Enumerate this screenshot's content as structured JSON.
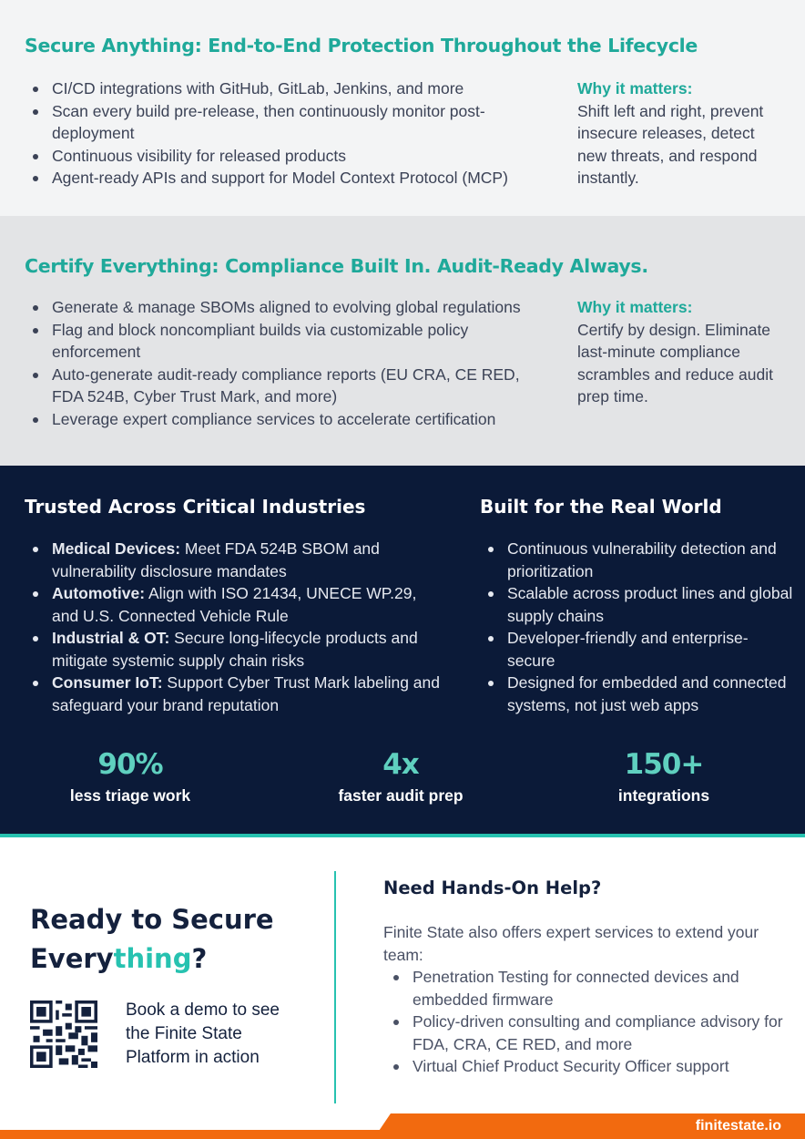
{
  "secure": {
    "title": "Secure Anything: End-to-End Protection Throughout the Lifecycle",
    "items": [
      "CI/CD integrations with GitHub, GitLab, Jenkins, and more",
      "Scan every build pre-release, then continuously monitor post-deployment",
      "Continuous visibility for released products",
      "Agent-ready APIs and support for Model Context Protocol (MCP)"
    ],
    "why_heading": "Why it matters:",
    "why_text": "Shift left and right, prevent insecure releases, detect new threats, and respond instantly."
  },
  "certify": {
    "title": "Certify Everything: Compliance Built In. Audit-Ready Always.",
    "items": [
      "Generate & manage SBOMs aligned to evolving global regulations",
      "Flag and block noncompliant builds via customizable policy enforcement",
      "Auto-generate audit-ready compliance reports (EU CRA, CE RED, FDA 524B, Cyber Trust Mark, and more)",
      "Leverage expert compliance services to accelerate certification"
    ],
    "why_heading": "Why it matters:",
    "why_text": "Certify by design. Eliminate last-minute compliance scrambles and reduce audit prep time."
  },
  "industries": {
    "title": "Trusted Across Critical Industries",
    "items": [
      {
        "label": "Medical Devices:",
        "text": " Meet FDA 524B SBOM and vulnerability disclosure mandates"
      },
      {
        "label": "Automotive:",
        "text": " Align with ISO 21434, UNECE WP.29, and U.S. Connected Vehicle Rule"
      },
      {
        "label": "Industrial & OT:",
        "text": " Secure long-lifecycle products and mitigate systemic supply chain risks"
      },
      {
        "label": "Consumer IoT:",
        "text": " Support Cyber Trust Mark labeling and safeguard your brand reputation"
      }
    ]
  },
  "real_world": {
    "title": "Built for the Real World",
    "items": [
      "Continuous vulnerability detection and prioritization",
      "Scalable across product lines and global supply chains",
      "Developer-friendly and enterprise-secure",
      "Designed for embedded and connected systems, not just web apps"
    ]
  },
  "stats": [
    {
      "value": "90%",
      "label": "less triage work"
    },
    {
      "value": "4x",
      "label": "faster audit prep"
    },
    {
      "value": "150+",
      "label": "integrations"
    }
  ],
  "cta": {
    "title_1": "Ready to Secure",
    "title_2a": "Every",
    "title_2b": "thing",
    "title_2c": "?",
    "demo_text": "Book a demo to see the Finite State Platform in action"
  },
  "help": {
    "title": "Need Hands-On Help?",
    "intro": "Finite State also offers expert services to extend your team:",
    "items": [
      "Penetration Testing for connected devices and embedded firmware",
      "Policy-driven consulting and compliance advisory for FDA, CRA, CE RED, and more",
      "Virtual Chief Product Security Officer support"
    ]
  },
  "footer": {
    "url": "finitestate.io"
  },
  "colors": {
    "teal": "#1fa99a",
    "navy": "#0b1a38",
    "orange": "#f26a0f"
  }
}
